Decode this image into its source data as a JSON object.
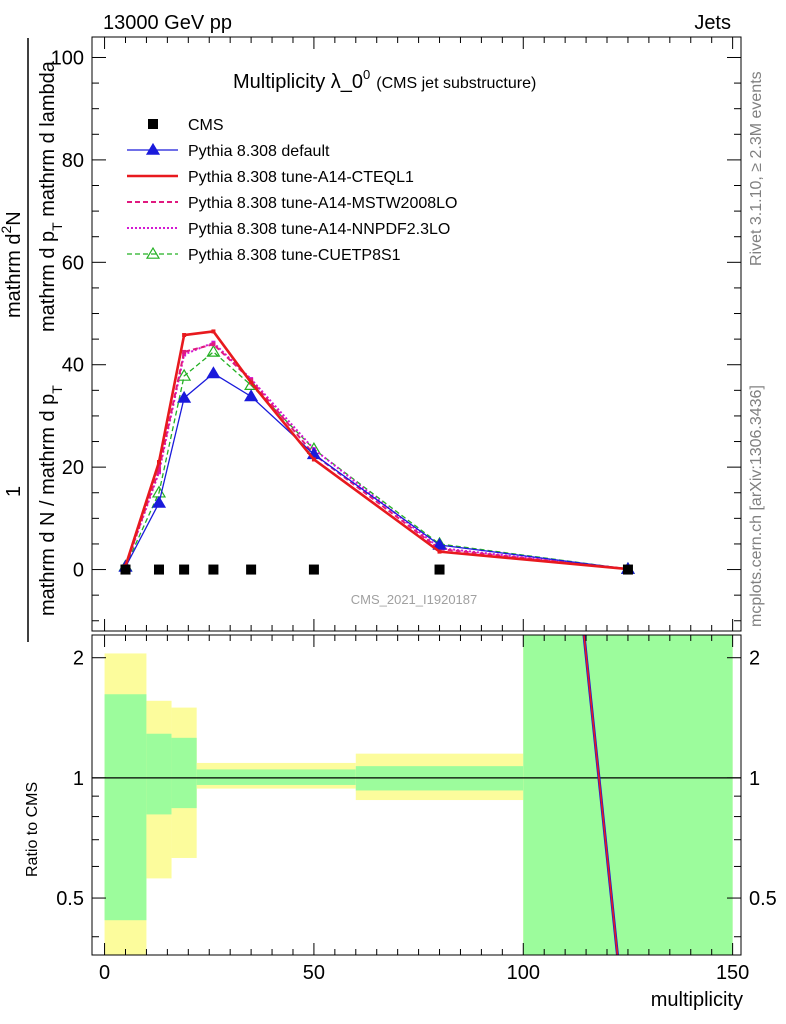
{
  "header": {
    "left": "13000 GeV pp",
    "right": "Jets"
  },
  "side_labels": {
    "rivet": "Rivet 3.1.10, ≥ 2.3M events",
    "mcplots": "mcplots.cern.ch [arXiv:1306.3436]"
  },
  "watermark": "CMS_2021_I1920187",
  "colors": {
    "cms": "#000000",
    "default": "#1a1adb",
    "cteql1": "#e8191e",
    "mstw": "#e0197f",
    "nnpdf": "#d318d3",
    "cuetp8s1": "#23b023",
    "band_inner": "#9cfc9c",
    "band_outer": "#fcfc9c"
  },
  "chart_data": [
    {
      "type": "line",
      "title": "Multiplicity λ_0",
      "title_sup": "0",
      "title_suffix": "(CMS jet substructure)",
      "xlabel": "multiplicity",
      "ylabel_numerator": "mathrm d²N",
      "ylabel_numerator_main": "mathrm d",
      "ylabel_numerator_sup": "2",
      "ylabel_numerator_tail": "N",
      "ylabel_pt": "mathrm d p",
      "ylabel_pt_sub": "T",
      "ylabel_lambda": " mathrm d lambda",
      "ylabel_one": "1",
      "ylabel_den_part1": "mathrm d N / mathrm d p",
      "ylabel_den_sub": "T",
      "xlim": [
        -3,
        152
      ],
      "ylim": [
        -12,
        104
      ],
      "yticks": [
        0,
        20,
        40,
        60,
        80,
        100
      ],
      "ytick_labels": [
        "0",
        "20",
        "40",
        "60",
        "80",
        "100"
      ],
      "xticks": [
        0,
        50,
        100,
        150
      ],
      "legend_position": "top-left",
      "series": [
        {
          "name": "CMS",
          "style": "markers-square",
          "x": [
            5,
            13,
            19,
            26,
            35,
            50,
            80,
            125
          ],
          "y": [
            0,
            0,
            0,
            0,
            0,
            0,
            0,
            0
          ]
        },
        {
          "name": "Pythia 8.308 default",
          "style": "solid-triangle",
          "x": [
            5,
            13,
            19,
            26,
            35,
            50,
            80,
            125
          ],
          "y": [
            0.5,
            13.0,
            33.5,
            38.3,
            33.8,
            22.5,
            4.8,
            0.1
          ]
        },
        {
          "name": "Pythia 8.308 tune-A14-CTEQL1",
          "style": "solid-thick",
          "x": [
            5,
            13,
            19,
            26,
            35,
            50,
            80,
            125
          ],
          "y": [
            0.7,
            21.0,
            45.8,
            46.5,
            36.5,
            21.5,
            3.5,
            0.1
          ]
        },
        {
          "name": "Pythia 8.308 tune-A14-MSTW2008LO",
          "style": "dashed",
          "x": [
            5,
            13,
            19,
            26,
            35,
            50,
            80,
            125
          ],
          "y": [
            0.6,
            19.5,
            42.5,
            44.0,
            37.0,
            22.5,
            4.0,
            0.1
          ]
        },
        {
          "name": "Pythia 8.308 tune-A14-NNPDF2.3LO",
          "style": "dotted",
          "x": [
            5,
            13,
            19,
            26,
            35,
            50,
            80,
            125
          ],
          "y": [
            0.6,
            19.0,
            42.0,
            44.3,
            37.2,
            23.5,
            4.2,
            0.1
          ]
        },
        {
          "name": "Pythia 8.308 tune-CUETP8S1",
          "style": "dashed-open-triangle",
          "x": [
            5,
            13,
            19,
            26,
            35,
            50,
            80,
            125
          ],
          "y": [
            0.6,
            15.0,
            37.8,
            42.5,
            36.0,
            23.5,
            5.0,
            0.1
          ]
        }
      ]
    },
    {
      "type": "area",
      "ylabel": "Ratio to CMS",
      "xlabel": "multiplicity",
      "xlim": [
        -3,
        152
      ],
      "ylim": [
        0.36,
        2.28
      ],
      "yticks": [
        0.5,
        1,
        2
      ],
      "ytick_labels": [
        "0.5",
        "1",
        "2"
      ],
      "xticks": [
        0,
        50,
        100,
        150
      ],
      "xtick_labels": [
        "0",
        "50",
        "100",
        "150"
      ],
      "bands": [
        {
          "x0": 0,
          "x1": 10,
          "inner_lo": 0.44,
          "inner_hi": 1.62,
          "outer_lo": 0.36,
          "outer_hi": 2.05
        },
        {
          "x0": 10,
          "x1": 16,
          "inner_lo": 0.81,
          "inner_hi": 1.29,
          "outer_lo": 0.56,
          "outer_hi": 1.56
        },
        {
          "x0": 16,
          "x1": 22,
          "inner_lo": 0.84,
          "inner_hi": 1.26,
          "outer_lo": 0.63,
          "outer_hi": 1.5
        },
        {
          "x0": 22,
          "x1": 60,
          "inner_lo": 0.96,
          "inner_hi": 1.05,
          "outer_lo": 0.94,
          "outer_hi": 1.09
        },
        {
          "x0": 60,
          "x1": 100,
          "inner_lo": 0.93,
          "inner_hi": 1.07,
          "outer_lo": 0.88,
          "outer_hi": 1.15
        },
        {
          "x0": 100,
          "x1": 150,
          "inner_lo": 0.36,
          "inner_hi": 2.28,
          "outer_lo": 0.36,
          "outer_hi": 2.28
        }
      ],
      "ratio_line": {
        "x": [
          114.5,
          122.5
        ],
        "y": [
          2.28,
          0.36
        ]
      }
    }
  ]
}
